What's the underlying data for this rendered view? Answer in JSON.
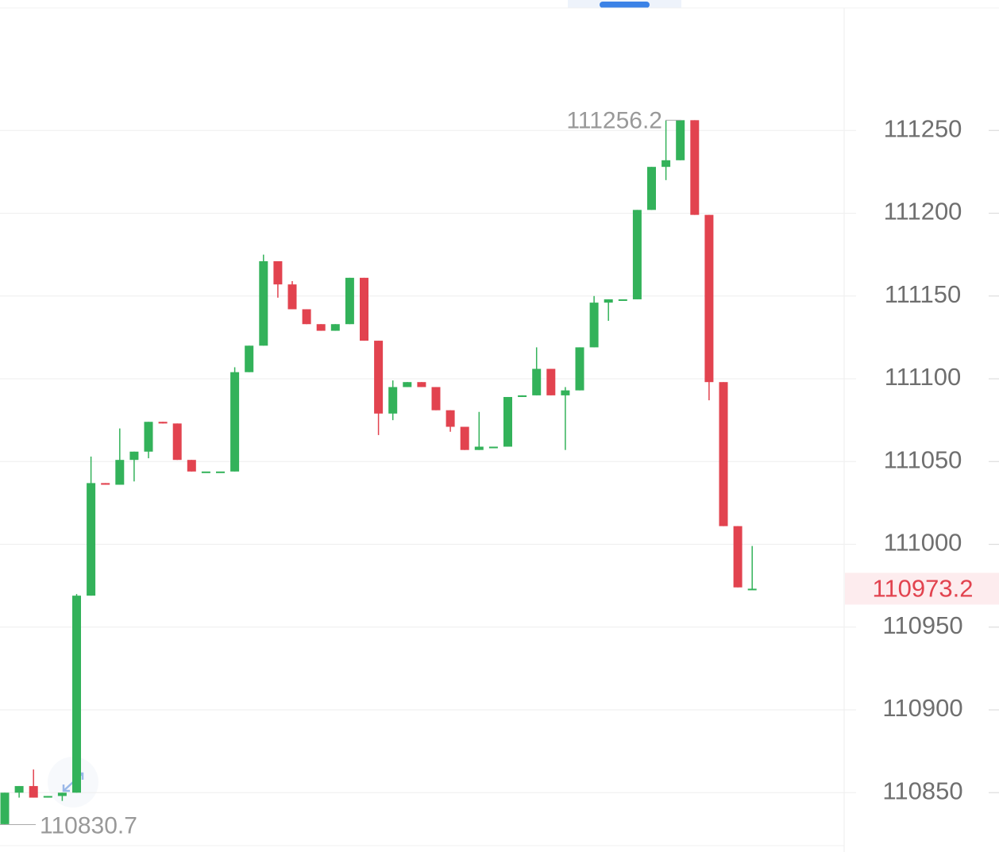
{
  "chart_data": {
    "type": "candlestick",
    "ylim": [
      110818,
      111324
    ],
    "yticks": [
      110850,
      110900,
      110950,
      111000,
      111050,
      111100,
      111150,
      111200,
      111250
    ],
    "grid": true,
    "up_color": "#33b25a",
    "down_color": "#e2434f",
    "open": [
      110831,
      110850,
      110854,
      110847,
      110848,
      110850,
      110969,
      111037,
      111036,
      111051,
      111056,
      111074,
      111073,
      111051,
      111044,
      111044,
      111044,
      111104,
      111120,
      111171,
      111157,
      111142,
      111133,
      111129,
      111133,
      111161,
      111123,
      111079,
      111095,
      111098,
      111095,
      111081,
      111071,
      111057,
      111059,
      111059,
      111089,
      111090,
      111106,
      111090,
      111093,
      111119,
      111146,
      111148,
      111148,
      111202,
      111228,
      111232,
      111256.2,
      111199,
      111098,
      111011,
      110973
    ],
    "high": [
      110850,
      110854,
      110864,
      110848,
      110850,
      110970,
      111053,
      111037,
      111070,
      111056,
      111074,
      111074,
      111073,
      111051,
      111044,
      111044,
      111107,
      111120,
      111175,
      111171,
      111159,
      111142,
      111133,
      111133,
      111161,
      111161,
      111123,
      111099,
      111098,
      111098,
      111095,
      111081,
      111071,
      111080,
      111059,
      111089,
      111090,
      111119,
      111106,
      111095,
      111119,
      111150,
      111148,
      111148,
      111202,
      111228,
      111256,
      111256.2,
      111256.2,
      111199,
      111098,
      111011,
      110999
    ],
    "low": [
      110830.7,
      110847,
      110847,
      110847,
      110845,
      110850,
      110969,
      111036,
      111036,
      111038,
      111052,
      111073,
      111051,
      111044,
      111044,
      111044,
      111044,
      111104,
      111120,
      111149,
      111142,
      111133,
      111129,
      111129,
      111133,
      111123,
      111066,
      111075,
      111095,
      111095,
      111081,
      111068,
      111057,
      111057,
      111059,
      111059,
      111089,
      111090,
      111090,
      111057,
      111093,
      111119,
      111135,
      111148,
      111148,
      111202,
      111220,
      111232,
      111199,
      111087,
      111011,
      110974,
      110973
    ],
    "close": [
      110850,
      110854,
      110847,
      110848,
      110850,
      110969,
      111037,
      111036,
      111051,
      111056,
      111074,
      111073,
      111051,
      111044,
      111044,
      111044,
      111104,
      111120,
      111171,
      111157,
      111142,
      111133,
      111129,
      111133,
      111161,
      111123,
      111079,
      111095,
      111098,
      111095,
      111081,
      111071,
      111057,
      111059,
      111059,
      111089,
      111090,
      111106,
      111090,
      111093,
      111119,
      111146,
      111148,
      111148,
      111202,
      111228,
      111232,
      111256.2,
      111199,
      111098,
      111011,
      110974,
      110973.2
    ],
    "max_label": 111256.2,
    "min_label": 110830.7,
    "last_price": 110973.2
  }
}
